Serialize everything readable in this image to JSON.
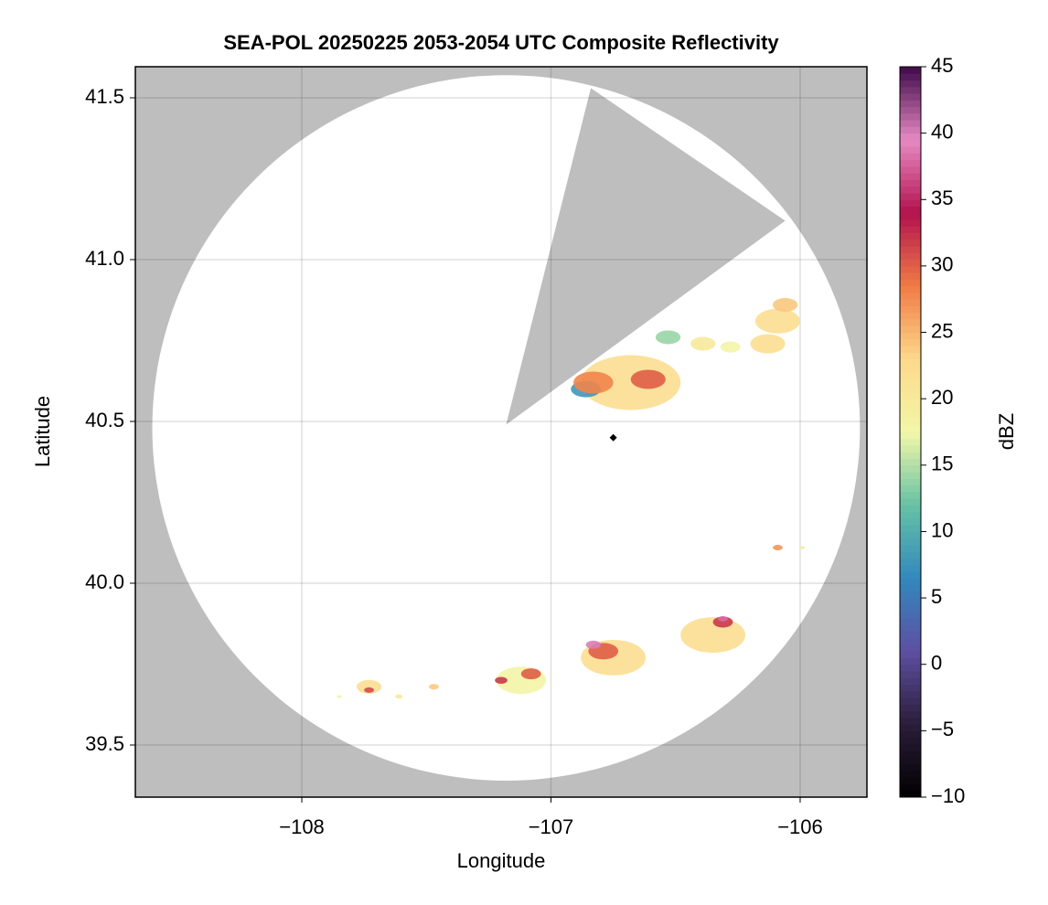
{
  "chart_data": {
    "type": "radar-map",
    "title": "SEA-POL 20250225 2053-2054 UTC Composite Reflectivity",
    "x_label": "Longitude",
    "y_label": "Latitude",
    "colorbar_label": "dBZ",
    "xlim": [
      -108.668,
      -105.732
    ],
    "ylim": [
      39.339,
      41.596
    ],
    "xticks": [
      {
        "value": -108,
        "label": "−108"
      },
      {
        "value": -107,
        "label": "−107"
      },
      {
        "value": -106,
        "label": "−106"
      }
    ],
    "yticks": [
      39.5,
      {
        "value": 40.0,
        "label": "40.0"
      },
      40.5,
      {
        "value": 41.0,
        "label": "41.0"
      },
      41.5
    ],
    "grid": true,
    "background_color": "#bebebe",
    "coverage": {
      "center": [
        -107.18,
        40.48
      ],
      "radius_lon": 1.42,
      "radius_lat": 1.09,
      "color": "#ffffff"
    },
    "blocked_wedge": {
      "lon": [
        -107.18,
        -106.84,
        -106.06
      ],
      "lat": [
        40.49,
        41.53,
        41.12
      ]
    },
    "clim": [
      -10,
      45
    ],
    "colorbar_ticks": [
      {
        "value": -10,
        "label": "−10"
      },
      {
        "value": -5,
        "label": "−5"
      },
      0,
      5,
      10,
      15,
      20,
      25,
      30,
      35,
      40,
      45
    ],
    "colormap": [
      "#000000",
      "#2b1d3a",
      "#5e4fa2",
      "#3288bd",
      "#66c2a5",
      "#f2f7a8",
      "#fdd98b",
      "#f07b45",
      "#b3124e",
      "#e78ac3",
      "#3f0a4a"
    ],
    "echoes": {
      "x": [
        -106.68,
        -106.86,
        -106.83,
        -106.61,
        -106.53,
        -106.39,
        -106.28,
        -106.09,
        -106.13,
        -106.06,
        -106.09,
        -105.99,
        -107.73,
        -107.73,
        -107.61,
        -107.47,
        -107.85,
        -107.12,
        -107.08,
        -107.2,
        -106.75,
        -106.79,
        -106.83,
        -106.35,
        -106.31,
        -106.31
      ],
      "y": [
        40.62,
        40.6,
        40.62,
        40.63,
        40.76,
        40.74,
        40.73,
        40.81,
        40.74,
        40.86,
        40.11,
        40.11,
        39.68,
        39.67,
        39.65,
        39.68,
        39.65,
        39.7,
        39.72,
        39.7,
        39.77,
        39.79,
        39.81,
        39.84,
        39.88,
        39.89
      ],
      "values": [
        22,
        8,
        28,
        30,
        14,
        20,
        18,
        22,
        22,
        24,
        27,
        20,
        22,
        31,
        20,
        24,
        18,
        18,
        30,
        32,
        22,
        30,
        40,
        22,
        32,
        38
      ],
      "radius": [
        0.2,
        0.06,
        0.08,
        0.07,
        0.05,
        0.05,
        0.04,
        0.09,
        0.07,
        0.05,
        0.02,
        0.01,
        0.05,
        0.02,
        0.015,
        0.02,
        0.01,
        0.1,
        0.04,
        0.025,
        0.13,
        0.06,
        0.03,
        0.13,
        0.04,
        0.02
      ]
    },
    "marker": {
      "x": -106.75,
      "y": 40.45,
      "color": "#000000"
    }
  }
}
